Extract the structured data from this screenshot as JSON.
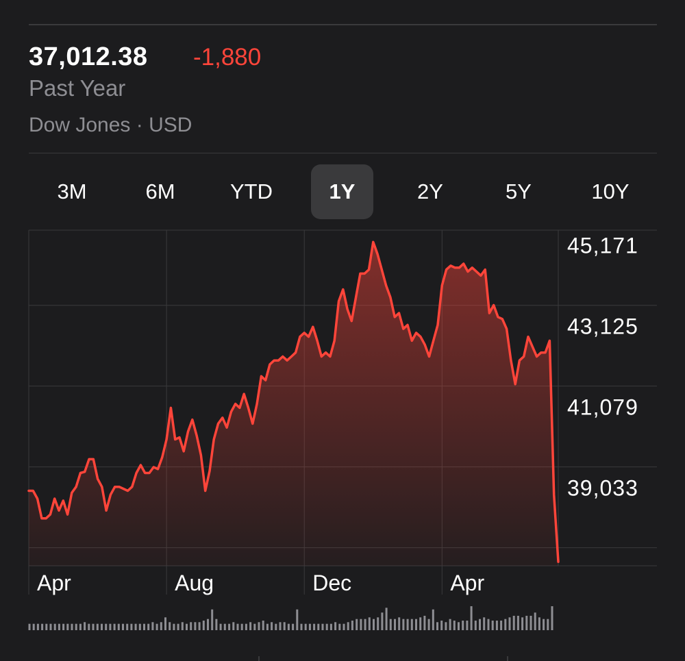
{
  "quote": {
    "price": "37,012.38",
    "change": "-1,880",
    "period": "Past Year",
    "source": "Dow Jones · USD"
  },
  "ranges": [
    "3M",
    "6M",
    "YTD",
    "1Y",
    "2Y",
    "5Y",
    "10Y"
  ],
  "selected_range": "1Y",
  "colors": {
    "background": "#1c1c1e",
    "line": "#ff453a",
    "negative": "#ff453a",
    "grid": "#3a3a3c",
    "muted_text": "#8e8e93",
    "volume_bars": "#8e8e93"
  },
  "chart_data": {
    "type": "area",
    "title": "",
    "xlabel": "",
    "ylabel": "",
    "ylim": [
      37100,
      45600
    ],
    "yticks": [
      45171,
      43125,
      41079,
      39033
    ],
    "ytick_labels": [
      "45,171",
      "43,125",
      "41,079",
      "39,033"
    ],
    "grid": true,
    "y_axis_position": "right",
    "x_tick_labels": [
      {
        "label": "Apr",
        "index": 0
      },
      {
        "label": "Aug",
        "index": 32
      },
      {
        "label": "Dec",
        "index": 64
      },
      {
        "label": "Apr",
        "index": 96
      }
    ],
    "series": [
      {
        "values": [
          39000,
          39000,
          38800,
          38300,
          38300,
          38400,
          38800,
          38500,
          38750,
          38400,
          38950,
          39100,
          39450,
          39480,
          39800,
          39800,
          39300,
          39100,
          38500,
          38900,
          39100,
          39100,
          39050,
          39000,
          39100,
          39450,
          39650,
          39450,
          39450,
          39600,
          39550,
          39850,
          40300,
          41100,
          40300,
          40350,
          40000,
          40500,
          40800,
          40400,
          39900,
          39000,
          39500,
          40300,
          40700,
          40850,
          40600,
          41000,
          41200,
          41100,
          41450,
          41100,
          40700,
          41200,
          41900,
          41800,
          42200,
          42300,
          42300,
          42400,
          42300,
          42400,
          42500,
          42900,
          43000,
          42900,
          43150,
          42800,
          42400,
          42500,
          42400,
          42800,
          43800,
          44100,
          43600,
          43300,
          43900,
          44500,
          44500,
          44600,
          45300,
          45000,
          44600,
          44200,
          43900,
          43400,
          43500,
          43100,
          43200,
          42800,
          43000,
          42900,
          42700,
          42400,
          42800,
          43200,
          44200,
          44600,
          44700,
          44650,
          44650,
          44750,
          44550,
          44650,
          44550,
          44450,
          44600,
          43500,
          43700,
          43400,
          43350,
          43100,
          42300,
          41700,
          42300,
          42400,
          42900,
          42650,
          42400,
          42500,
          42500,
          42800,
          38900,
          37200
        ]
      }
    ],
    "volume": [
      4,
      4,
      4,
      4,
      4,
      4,
      4,
      4,
      4,
      4,
      4,
      4,
      4,
      5,
      4,
      4,
      4,
      4,
      4,
      4,
      4,
      4,
      4,
      4,
      4,
      4,
      4,
      4,
      4,
      5,
      4,
      5,
      8,
      5,
      4,
      4,
      5,
      4,
      5,
      5,
      5,
      6,
      7,
      13,
      7,
      4,
      4,
      4,
      5,
      4,
      4,
      4,
      5,
      4,
      5,
      6,
      4,
      5,
      4,
      5,
      5,
      4,
      4,
      13,
      4,
      4,
      4,
      4,
      4,
      4,
      4,
      4,
      5,
      4,
      4,
      5,
      6,
      7,
      7,
      7,
      8,
      7,
      8,
      11,
      14,
      7,
      7,
      8,
      7,
      7,
      7,
      7,
      8,
      9,
      7,
      13,
      5,
      6,
      5,
      7,
      6,
      5,
      6,
      6,
      15,
      6,
      7,
      8,
      7,
      6,
      6,
      6,
      7,
      8,
      9,
      9,
      8,
      9,
      9,
      11,
      8,
      7,
      7,
      15
    ]
  }
}
